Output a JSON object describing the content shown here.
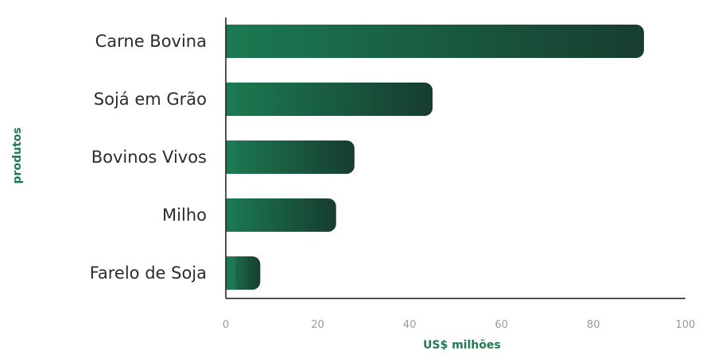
{
  "chart_data": {
    "type": "bar",
    "orientation": "horizontal",
    "categories": [
      "Carne Bovina",
      "Sojá em Grão",
      "Bovinos Vivos",
      "Milho",
      "Farelo de Soja"
    ],
    "values": [
      91,
      45,
      28,
      24,
      7.5
    ],
    "xlabel": "US$ milhões",
    "ylabel": "produtos",
    "xlim": [
      0,
      100
    ],
    "xticks": [
      "0",
      "20",
      "40",
      "60",
      "80",
      "100"
    ],
    "grid": false,
    "colors": {
      "bar_start": "#1b7a52",
      "bar_end": "#173d2f",
      "axis": "#1a1a1a",
      "label_accent": "#1f7a4e"
    }
  }
}
